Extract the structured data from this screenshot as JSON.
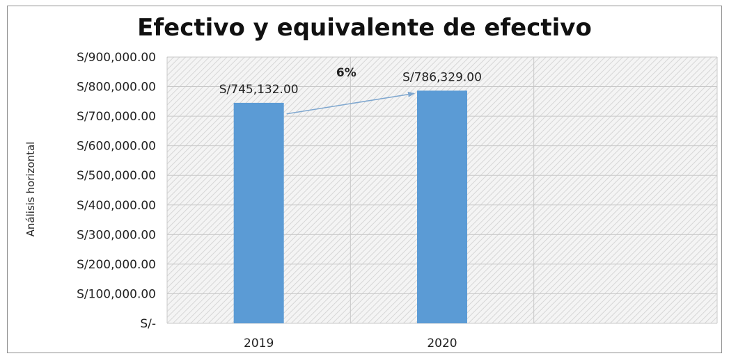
{
  "chart_data": {
    "type": "bar",
    "title": "Efectivo y equivalente de efectivo",
    "xlabel": "",
    "ylabel": "Análisis horizontal",
    "categories": [
      "2019",
      "2020"
    ],
    "values": [
      745132,
      786329
    ],
    "value_labels": [
      "S/745,132.00",
      "S/786,329.00"
    ],
    "ylim": [
      0,
      900000
    ],
    "yticks": [
      0,
      100000,
      200000,
      300000,
      400000,
      500000,
      600000,
      700000,
      800000,
      900000
    ],
    "ytick_labels": [
      "S/-",
      "S/100,000.00",
      "S/200,000.00",
      "S/300,000.00",
      "S/400,000.00",
      "S/500,000.00",
      "S/600,000.00",
      "S/700,000.00",
      "S/800,000.00",
      "S/900,000.00"
    ],
    "annotation": "6%",
    "grid": true,
    "bar_color": "#5b9bd5",
    "arrow_color": "#7fa7cf",
    "plot_background": "hatched-grey"
  }
}
